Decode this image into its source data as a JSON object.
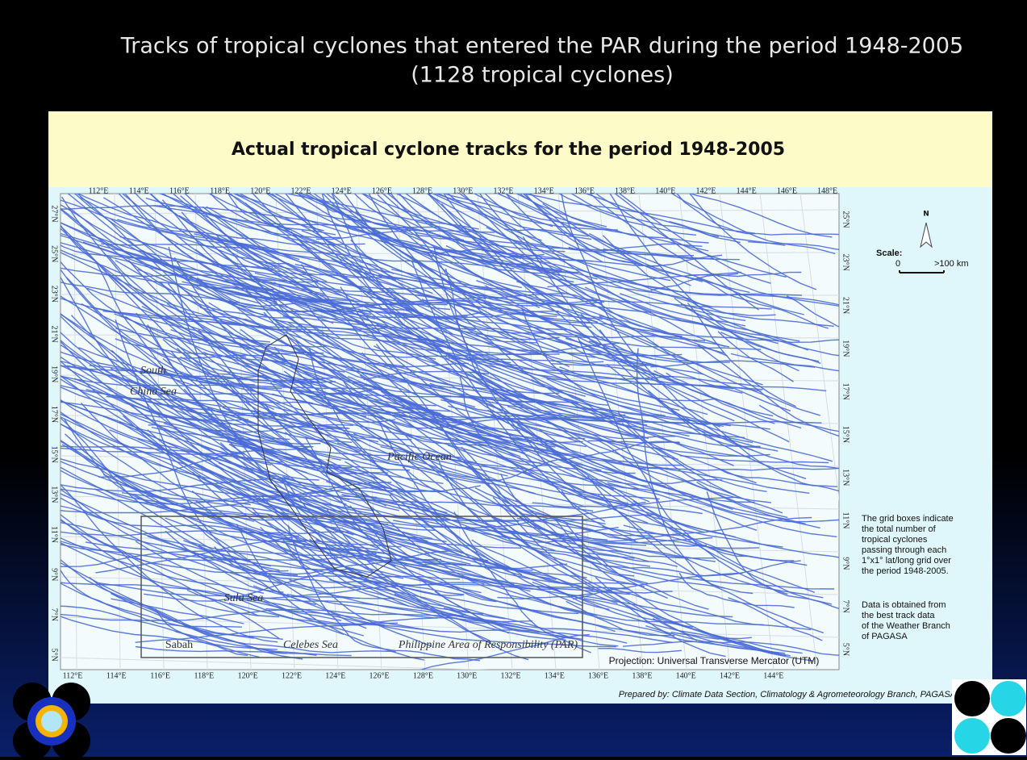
{
  "slide": {
    "title_line1": "Tracks of tropical cyclones that entered the PAR during the period 1948-2005",
    "title_line2": "(1128 tropical cyclones)",
    "credit": "Prepared by: Climate Data Section, Climatology & Agrometeorology Branch, PAGASA"
  },
  "map": {
    "header": "Actual tropical cyclone tracks for the period 1948-2005",
    "top_axis": [
      "112°E",
      "114°E",
      "116°E",
      "118°E",
      "120°E",
      "122°E",
      "124°E",
      "126°E",
      "128°E",
      "130°E",
      "132°E",
      "134°E",
      "136°E",
      "138°E",
      "140°E",
      "142°E",
      "144°E",
      "146°E",
      "148°E"
    ],
    "bottom_axis": [
      "112°E",
      "114°E",
      "116°E",
      "118°E",
      "120°E",
      "122°E",
      "124°E",
      "126°E",
      "128°E",
      "130°E",
      "132°E",
      "134°E",
      "136°E",
      "138°E",
      "140°E",
      "142°E",
      "144°E"
    ],
    "left_axis": [
      "27°N",
      "25°N",
      "23°N",
      "21°N",
      "19°N",
      "17°N",
      "15°N",
      "13°N",
      "11°N",
      "9°N",
      "7°N",
      "5°N"
    ],
    "right_axis": [
      "25°N",
      "23°N",
      "21°N",
      "19°N",
      "17°N",
      "15°N",
      "13°N",
      "11°N",
      "9°N",
      "7°N",
      "5°N"
    ],
    "places": {
      "south_china_sea_1": "South",
      "south_china_sea_2": "China Sea",
      "pacific": "Pacific Ocean",
      "sulu": "Sulu Sea",
      "sabah": "Sabah",
      "celebes": "Celebes Sea",
      "par": "Philippine Area of Responsibility (PAR)"
    },
    "projection": "Projection: Universal Transverse Mercator (UTM)",
    "north": "N",
    "scale_label": "Scale:",
    "scale_min": "0",
    "scale_max": ">100 km",
    "note": [
      "The grid boxes indicate",
      "the total  number of",
      "tropical cyclones",
      "passing through each",
      "1°x1° lat/long grid over",
      "the period 1948-2005."
    ],
    "source": [
      "Data is obtained from",
      "the  best track  data",
      "of the Weather Branch",
      "of PAGASA"
    ]
  }
}
